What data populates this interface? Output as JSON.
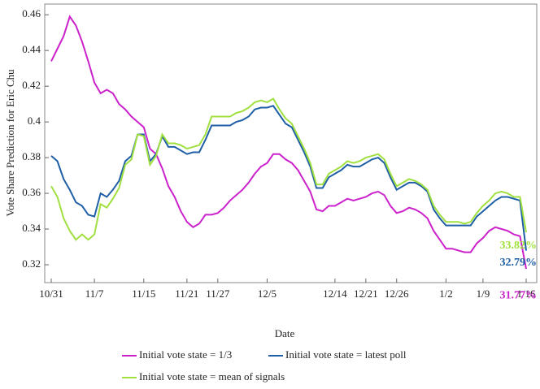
{
  "chart_data": {
    "type": "line",
    "y_label": "Vote Share Prediction for Eric Chu",
    "x_label": "Date",
    "categories": [
      "10/31",
      null,
      null,
      null,
      null,
      null,
      null,
      "11/7",
      null,
      null,
      null,
      null,
      null,
      null,
      null,
      "11/15",
      null,
      null,
      null,
      null,
      null,
      null,
      "11/21",
      null,
      null,
      null,
      null,
      "11/27",
      null,
      null,
      null,
      null,
      null,
      null,
      null,
      "12/5",
      null,
      null,
      null,
      null,
      null,
      null,
      null,
      null,
      null,
      null,
      "12/14",
      null,
      null,
      null,
      null,
      "12/21",
      null,
      null,
      null,
      null,
      "12/26",
      null,
      null,
      null,
      null,
      null,
      null,
      null,
      "1/2",
      null,
      null,
      null,
      null,
      null,
      "1/9",
      null,
      null,
      null,
      null,
      null,
      null,
      "1/16"
    ],
    "series": [
      {
        "name": "Initial vote state = 1/3",
        "color": "#cc22cc",
        "values": [
          0.434,
          0.441,
          0.448,
          0.459,
          0.454,
          0.445,
          0.434,
          0.422,
          0.416,
          0.418,
          0.416,
          0.41,
          0.407,
          0.403,
          0.4,
          0.397,
          0.385,
          0.382,
          0.374,
          0.364,
          0.358,
          0.35,
          0.344,
          0.341,
          0.343,
          0.348,
          0.348,
          0.349,
          0.352,
          0.356,
          0.359,
          0.362,
          0.366,
          0.371,
          0.375,
          0.377,
          0.382,
          0.382,
          0.379,
          0.377,
          0.373,
          0.367,
          0.361,
          0.351,
          0.35,
          0.353,
          0.353,
          0.355,
          0.357,
          0.356,
          0.357,
          0.358,
          0.36,
          0.361,
          0.359,
          0.353,
          0.349,
          0.35,
          0.352,
          0.351,
          0.349,
          0.346,
          0.339,
          0.334,
          0.329,
          0.329,
          0.328,
          0.327,
          0.327,
          0.332,
          0.335,
          0.339,
          0.341,
          0.34,
          0.339,
          0.337,
          0.336,
          0.3177
        ],
        "value_labels": [
          null,
          null,
          null,
          null,
          null,
          null,
          null,
          null,
          null,
          null,
          null,
          null,
          null,
          null,
          null,
          null,
          null,
          null,
          null,
          null,
          null,
          null,
          null,
          null,
          null,
          null,
          null,
          null,
          null,
          null,
          null,
          null,
          null,
          null,
          null,
          null,
          null,
          null,
          null,
          null,
          null,
          null,
          null,
          null,
          null,
          null,
          null,
          null,
          null,
          null,
          null,
          null,
          null,
          null,
          null,
          null,
          null,
          null,
          null,
          null,
          null,
          null,
          null,
          null,
          null,
          null,
          null,
          null,
          null,
          null,
          null,
          null,
          null,
          null,
          null,
          null,
          null,
          "31.77%"
        ]
      },
      {
        "name": "Initial vote state = latest poll",
        "color": "#1f5fa5",
        "values": [
          0.381,
          0.378,
          0.368,
          0.362,
          0.355,
          0.353,
          0.348,
          0.347,
          0.36,
          0.358,
          0.362,
          0.367,
          0.378,
          0.381,
          0.393,
          0.393,
          0.378,
          0.382,
          0.392,
          0.386,
          0.386,
          0.384,
          0.382,
          0.383,
          0.383,
          0.39,
          0.398,
          0.398,
          0.398,
          0.398,
          0.4,
          0.401,
          0.403,
          0.407,
          0.408,
          0.408,
          0.409,
          0.404,
          0.399,
          0.397,
          0.39,
          0.383,
          0.375,
          0.363,
          0.363,
          0.369,
          0.371,
          0.373,
          0.376,
          0.375,
          0.375,
          0.377,
          0.379,
          0.38,
          0.377,
          0.369,
          0.362,
          0.364,
          0.366,
          0.366,
          0.364,
          0.361,
          0.351,
          0.346,
          0.342,
          0.342,
          0.342,
          0.342,
          0.342,
          0.347,
          0.35,
          0.353,
          0.356,
          0.358,
          0.358,
          0.357,
          0.356,
          0.3279
        ],
        "value_labels": [
          null,
          null,
          null,
          null,
          null,
          null,
          null,
          null,
          null,
          null,
          null,
          null,
          null,
          null,
          null,
          null,
          null,
          null,
          null,
          null,
          null,
          null,
          null,
          null,
          null,
          null,
          null,
          null,
          null,
          null,
          null,
          null,
          null,
          null,
          null,
          null,
          null,
          null,
          null,
          null,
          null,
          null,
          null,
          null,
          null,
          null,
          null,
          null,
          null,
          null,
          null,
          null,
          null,
          null,
          null,
          null,
          null,
          null,
          null,
          null,
          null,
          null,
          null,
          null,
          null,
          null,
          null,
          null,
          null,
          null,
          null,
          null,
          null,
          null,
          null,
          null,
          null,
          "32.79%"
        ]
      },
      {
        "name": "Initial vote state = mean of signals",
        "color": "#a0e040",
        "values": [
          0.364,
          0.358,
          0.346,
          0.339,
          0.334,
          0.337,
          0.334,
          0.337,
          0.354,
          0.352,
          0.357,
          0.363,
          0.376,
          0.379,
          0.393,
          0.392,
          0.376,
          0.381,
          0.393,
          0.388,
          0.388,
          0.387,
          0.385,
          0.386,
          0.387,
          0.393,
          0.403,
          0.403,
          0.403,
          0.403,
          0.405,
          0.406,
          0.408,
          0.411,
          0.412,
          0.411,
          0.413,
          0.407,
          0.402,
          0.399,
          0.392,
          0.385,
          0.377,
          0.365,
          0.365,
          0.371,
          0.373,
          0.375,
          0.378,
          0.377,
          0.378,
          0.38,
          0.381,
          0.382,
          0.379,
          0.371,
          0.364,
          0.366,
          0.368,
          0.367,
          0.365,
          0.362,
          0.353,
          0.348,
          0.344,
          0.344,
          0.344,
          0.343,
          0.344,
          0.349,
          0.353,
          0.356,
          0.36,
          0.361,
          0.36,
          0.358,
          0.358,
          0.3382
        ],
        "value_labels": [
          null,
          null,
          null,
          null,
          null,
          null,
          null,
          null,
          null,
          null,
          null,
          null,
          null,
          null,
          null,
          null,
          null,
          null,
          null,
          null,
          null,
          null,
          null,
          null,
          null,
          null,
          null,
          null,
          null,
          null,
          null,
          null,
          null,
          null,
          null,
          null,
          null,
          null,
          null,
          null,
          null,
          null,
          null,
          null,
          null,
          null,
          null,
          null,
          null,
          null,
          null,
          null,
          null,
          null,
          null,
          null,
          null,
          null,
          null,
          null,
          null,
          null,
          null,
          null,
          null,
          null,
          null,
          null,
          null,
          null,
          null,
          null,
          null,
          null,
          null,
          null,
          null,
          "33.82%"
        ]
      }
    ],
    "ylim": [
      0.31,
      0.466
    ],
    "yticks": [
      0.32,
      0.34,
      0.36,
      0.38,
      0.4,
      0.42,
      0.44,
      0.46
    ]
  }
}
